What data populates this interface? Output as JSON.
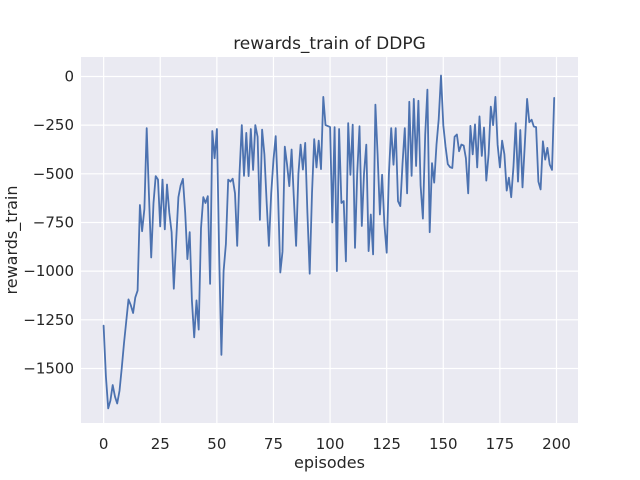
{
  "chart_data": {
    "type": "line",
    "title": "rewards_train of DDPG",
    "xlabel": "episodes",
    "ylabel": "rewards_train",
    "x_start": 0,
    "x_step": 1,
    "x_ticks": [
      0,
      25,
      50,
      75,
      100,
      125,
      150,
      175,
      200
    ],
    "y_ticks": [
      0,
      -250,
      -500,
      -750,
      -1000,
      -1250,
      -1500
    ],
    "xlim": [
      -10,
      209.5
    ],
    "ylim": [
      -1780,
      100
    ],
    "grid": true,
    "legend": false,
    "style": "seaborn-darkgrid",
    "colors": {
      "line": "#4c72b0",
      "axes_background": "#eaeaf2",
      "grid": "#ffffff",
      "text": "#262626",
      "figure_background": "#ffffff"
    },
    "series": [
      {
        "name": "rewards_train",
        "values": [
          -1280,
          -1540,
          -1705,
          -1665,
          -1585,
          -1645,
          -1680,
          -1615,
          -1495,
          -1370,
          -1255,
          -1145,
          -1175,
          -1215,
          -1135,
          -1100,
          -660,
          -795,
          -680,
          -265,
          -600,
          -930,
          -650,
          -512,
          -530,
          -770,
          -530,
          -785,
          -555,
          -700,
          -800,
          -1090,
          -850,
          -620,
          -560,
          -526,
          -700,
          -938,
          -800,
          -1150,
          -1340,
          -1150,
          -1300,
          -780,
          -620,
          -650,
          -615,
          -1065,
          -280,
          -420,
          -270,
          -900,
          -1430,
          -1000,
          -860,
          -530,
          -540,
          -525,
          -600,
          -870,
          -500,
          -250,
          -510,
          -290,
          -512,
          -270,
          -480,
          -250,
          -310,
          -736,
          -273,
          -400,
          -652,
          -870,
          -600,
          -426,
          -307,
          -600,
          -1007,
          -900,
          -360,
          -450,
          -563,
          -375,
          -620,
          -870,
          -500,
          -350,
          -478,
          -341,
          -700,
          -1013,
          -600,
          -322,
          -467,
          -330,
          -476,
          -105,
          -250,
          -255,
          -260,
          -750,
          -260,
          -1000,
          -270,
          -650,
          -640,
          -950,
          -240,
          -505,
          -248,
          -880,
          -500,
          -256,
          -768,
          -500,
          -350,
          -897,
          -709,
          -914,
          -145,
          -400,
          -709,
          -505,
          -760,
          -905,
          -500,
          -265,
          -453,
          -265,
          -640,
          -666,
          -450,
          -265,
          -600,
          -130,
          -510,
          -115,
          -460,
          -125,
          -560,
          -730,
          -300,
          -68,
          -800,
          -445,
          -545,
          -350,
          -220,
          5,
          -250,
          -358,
          -450,
          -466,
          -470,
          -310,
          -298,
          -384,
          -350,
          -355,
          -420,
          -600,
          -254,
          -400,
          -246,
          -467,
          -205,
          -408,
          -262,
          -535,
          -400,
          -155,
          -250,
          -105,
          -350,
          -467,
          -330,
          -400,
          -586,
          -520,
          -620,
          -460,
          -240,
          -540,
          -275,
          -570,
          -350,
          -115,
          -235,
          -222,
          -257,
          -260,
          -540,
          -580,
          -333,
          -427,
          -367,
          -452,
          -480,
          -110
        ]
      }
    ]
  }
}
